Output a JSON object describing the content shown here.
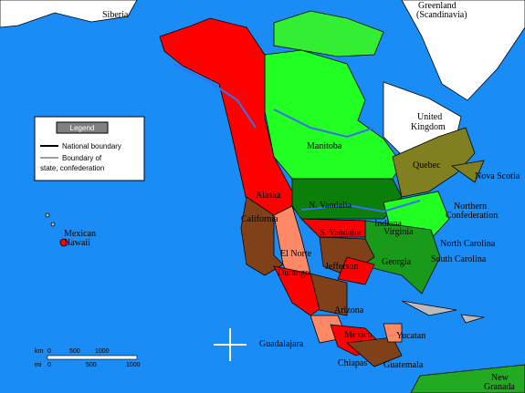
{
  "legend": {
    "title": "Legend",
    "items": [
      [
        "National boundary"
      ],
      [
        "Boundary of",
        "state, confederation"
      ]
    ]
  },
  "places": {
    "siberia": [
      "Siberia"
    ],
    "greenland": [
      "Greenland",
      "(Scandinavia)"
    ],
    "united_kingdom": [
      "United",
      "Kingdom"
    ],
    "manitoba": [
      "Manitoba"
    ],
    "quebec": [
      "Quebec"
    ],
    "nova_scotia": [
      "Nova Scotia"
    ],
    "northern_confederation": [
      "Northern",
      "Confederation"
    ],
    "alaska": [
      "Alaska"
    ],
    "california": [
      "California"
    ],
    "n_vandalia": [
      "N. Vandalia"
    ],
    "s_vandalia": [
      "S. Vandalia"
    ],
    "indiana": [
      "Indiana"
    ],
    "virginia": [
      "Virginia"
    ],
    "north_carolina": [
      "North Carolina"
    ],
    "south_carolina": [
      "South Carolina"
    ],
    "georgia": [
      "Georgia"
    ],
    "el_norte": [
      "El Norte"
    ],
    "jefferson": [
      "Jefferson"
    ],
    "durango": [
      "Durango"
    ],
    "arizona": [
      "Arizona"
    ],
    "mexico": [
      "Mexico"
    ],
    "yucatan": [
      "Yucatan"
    ],
    "guadalajara": [
      "Guadalajara"
    ],
    "chiapas": [
      "Chiapas"
    ],
    "guatemala": [
      "Guatemala"
    ],
    "new_granada": [
      "New",
      "Granada"
    ],
    "mexican_hawaii": [
      "Mexican",
      "Hawaii"
    ]
  },
  "scale": {
    "km": {
      "unit": "km",
      "ticks": [
        0,
        500,
        1000
      ]
    },
    "mi": {
      "unit": "mi",
      "ticks": [
        0,
        500,
        1000
      ]
    }
  }
}
